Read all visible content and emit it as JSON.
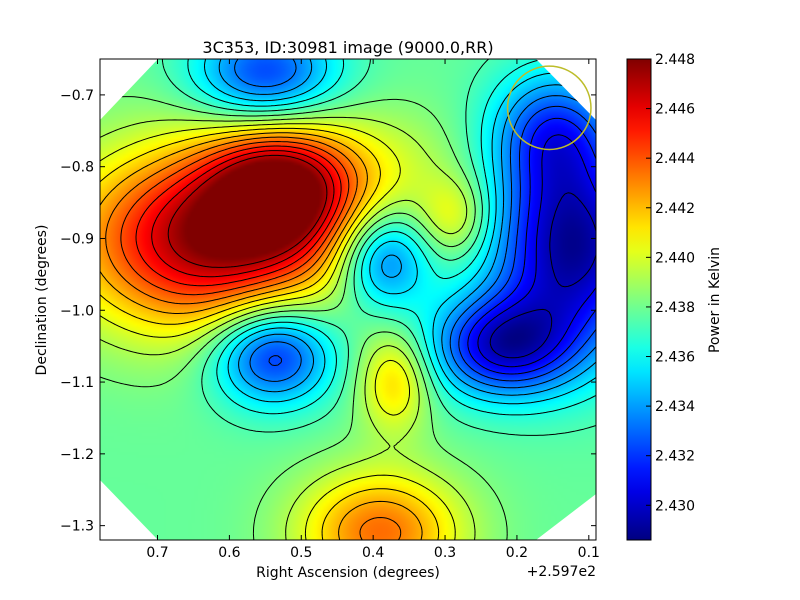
{
  "chart_data": {
    "type": "heatmap",
    "title": "3C353, ID:30981 image (9000.0,RR)",
    "xlabel": "Right Ascension (degrees)",
    "ylabel": "Declination (degrees)",
    "x_offset_label": "+2.597e2",
    "xlim": [
      0.78,
      0.09
    ],
    "ylim": [
      -1.32,
      -0.65
    ],
    "xticks": [
      0.7,
      0.6,
      0.5,
      0.4,
      0.3,
      0.2,
      0.1
    ],
    "xtick_labels": [
      "0.7",
      "0.6",
      "0.5",
      "0.4",
      "0.3",
      "0.2",
      "0.1"
    ],
    "yticks": [
      -0.7,
      -0.8,
      -0.9,
      -1.0,
      -1.1,
      -1.2,
      -1.3
    ],
    "ytick_labels": [
      "−0.7",
      "−0.8",
      "−0.9",
      "−1.0",
      "−1.1",
      "−1.2",
      "−1.3"
    ],
    "colorbar": {
      "label": "Power in Kelvin",
      "range": [
        2.4286,
        2.448
      ],
      "ticks": [
        2.448,
        2.446,
        2.444,
        2.442,
        2.44,
        2.438,
        2.436,
        2.434,
        2.432,
        2.43
      ],
      "tick_labels": [
        "2.448",
        "2.446",
        "2.444",
        "2.442",
        "2.440",
        "2.438",
        "2.436",
        "2.434",
        "2.432",
        "2.430"
      ],
      "colormap": "jet"
    },
    "field_features": [
      {
        "kind": "max",
        "x": 0.63,
        "y": -0.9,
        "value": 2.4475,
        "sx": 0.13,
        "sy": 0.09
      },
      {
        "kind": "max",
        "x": 0.53,
        "y": -0.83,
        "value": 2.4455,
        "sx": 0.07,
        "sy": 0.06
      },
      {
        "kind": "max",
        "x": 0.39,
        "y": -1.31,
        "value": 2.4435,
        "sx": 0.08,
        "sy": 0.06
      },
      {
        "kind": "max",
        "x": 0.37,
        "y": -1.1,
        "value": 2.4415,
        "sx": 0.035,
        "sy": 0.05
      },
      {
        "kind": "max",
        "x": 0.285,
        "y": -0.87,
        "value": 2.4405,
        "sx": 0.035,
        "sy": 0.04
      },
      {
        "kind": "max",
        "x": 0.4,
        "y": -0.8,
        "value": 2.4395,
        "sx": 0.1,
        "sy": 0.06
      },
      {
        "kind": "min",
        "x": 0.54,
        "y": -1.06,
        "value": 2.431,
        "sx": 0.06,
        "sy": 0.05
      },
      {
        "kind": "min",
        "x": 0.385,
        "y": -0.93,
        "value": 2.4325,
        "sx": 0.045,
        "sy": 0.05
      },
      {
        "kind": "min",
        "x": 0.22,
        "y": -1.05,
        "value": 2.4305,
        "sx": 0.07,
        "sy": 0.05
      },
      {
        "kind": "min",
        "x": 0.12,
        "y": -0.91,
        "value": 2.429,
        "sx": 0.08,
        "sy": 0.1
      },
      {
        "kind": "min",
        "x": 0.55,
        "y": -0.67,
        "value": 2.432,
        "sx": 0.07,
        "sy": 0.05
      },
      {
        "kind": "min",
        "x": 0.15,
        "y": -0.75,
        "value": 2.433,
        "sx": 0.06,
        "sy": 0.06
      }
    ],
    "background_level": 2.4378,
    "contour_count": 19,
    "beam_circle": {
      "ra": 0.155,
      "dec": -0.718,
      "radius_deg": 0.058,
      "color": "#bdbd2a"
    },
    "map_shape": "octagon",
    "grid": false
  }
}
